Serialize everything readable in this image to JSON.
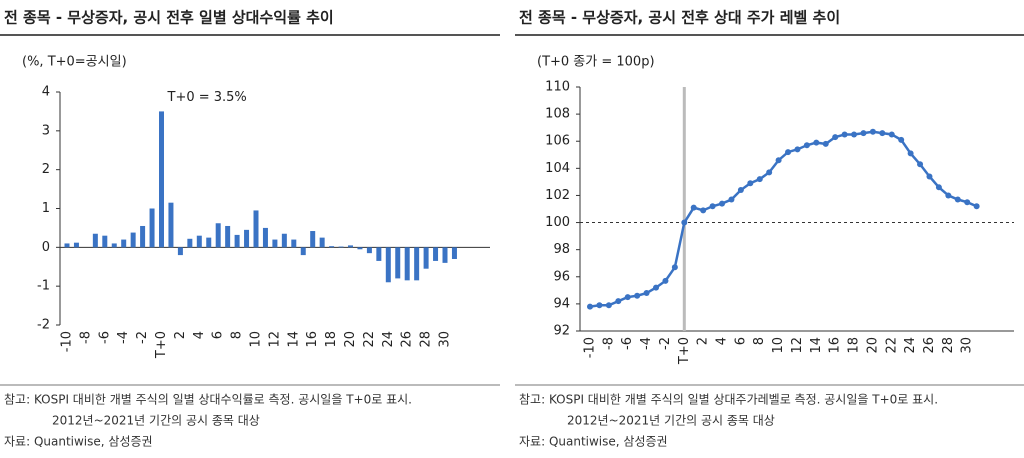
{
  "chart_data": [
    {
      "type": "bar",
      "title": "전 종목 - 무상증자, 공시 전후 일별 상대수익률 추이",
      "unit_label": "(%, T+0=공시일)",
      "annotation": "T+0 = 3.5%",
      "categories": [
        "-10",
        null,
        "-8",
        null,
        "-6",
        null,
        "-4",
        null,
        "-2",
        null,
        "T+0",
        null,
        "2",
        null,
        "4",
        null,
        "6",
        null,
        "8",
        null,
        "10",
        null,
        "12",
        null,
        "14",
        null,
        "16",
        null,
        "18",
        null,
        "20",
        null,
        "22",
        null,
        "24",
        null,
        "26",
        null,
        "28",
        null,
        "30",
        null
      ],
      "values": [
        0.1,
        0.12,
        0.0,
        0.35,
        0.3,
        0.1,
        0.2,
        0.38,
        0.55,
        1.0,
        3.5,
        1.15,
        -0.2,
        0.22,
        0.3,
        0.25,
        0.62,
        0.55,
        0.32,
        0.45,
        0.95,
        0.5,
        0.2,
        0.35,
        0.2,
        -0.2,
        0.42,
        0.25,
        0.03,
        0.02,
        0.05,
        -0.05,
        -0.15,
        -0.35,
        -0.9,
        -0.8,
        -0.85,
        -0.85,
        -0.55,
        -0.35,
        -0.4,
        -0.3
      ],
      "color": "#3a73c4",
      "ylim": [
        -2,
        4
      ],
      "yticks": [
        -2,
        -1,
        0,
        1,
        2,
        3,
        4
      ],
      "notes": [
        "참고: KOSPI 대비한 개별 주식의 일별 상대수익률로 측정. 공시일을 T+0로 표시.",
        "2012년~2021년 기간의 공시 종목 대상",
        "자료: Quantiwise, 삼성증권"
      ]
    },
    {
      "type": "line",
      "title": "전 종목 - 무상증자, 공시 전후 상대 주가 레벨 추이",
      "unit_label": "(T+0 종가 = 100p)",
      "categories": [
        "-10",
        null,
        "-8",
        null,
        "-6",
        null,
        "-4",
        null,
        "-2",
        null,
        "T+0",
        null,
        "2",
        null,
        "4",
        null,
        "6",
        null,
        "8",
        null,
        "10",
        null,
        "12",
        null,
        "14",
        null,
        "16",
        null,
        "18",
        null,
        "20",
        null,
        "22",
        null,
        "24",
        null,
        "26",
        null,
        "28",
        null,
        "30",
        null
      ],
      "values": [
        93.8,
        93.9,
        93.9,
        94.2,
        94.5,
        94.6,
        94.8,
        95.2,
        95.7,
        96.7,
        100,
        101.1,
        100.9,
        101.2,
        101.4,
        101.7,
        102.4,
        102.9,
        103.2,
        103.7,
        104.6,
        105.2,
        105.4,
        105.7,
        105.9,
        105.8,
        106.3,
        106.5,
        106.5,
        106.6,
        106.7,
        106.6,
        106.5,
        106.1,
        105.1,
        104.3,
        103.4,
        102.6,
        102.0,
        101.7,
        101.5,
        101.2
      ],
      "color": "#3a73c4",
      "ylim": [
        92,
        110
      ],
      "yticks": [
        92,
        94,
        96,
        98,
        100,
        102,
        104,
        106,
        108,
        110
      ],
      "reference_line": 100,
      "notes": [
        "참고: KOSPI 대비한 개별 주식의 일별 상대주가레벨로 측정. 공시일을 T+0로 표시.",
        "2012년~2021년 기간의 공시 종목 대상",
        "자료: Quantiwise, 삼성증권"
      ]
    }
  ]
}
